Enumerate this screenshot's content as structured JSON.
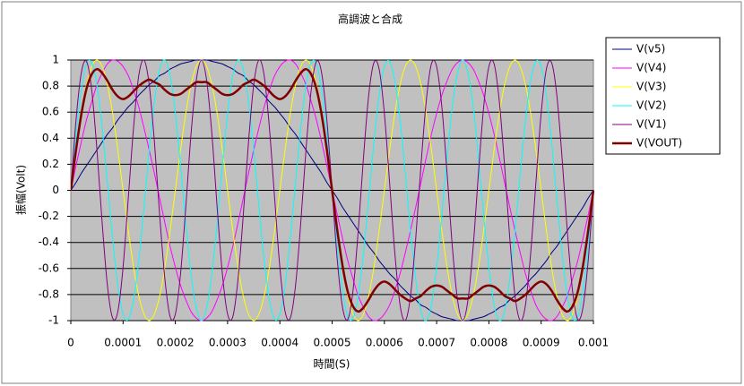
{
  "chart_data": {
    "type": "line",
    "title": "高調波と合成",
    "x_label": "時間(S)",
    "y_label": "振幅(Volt)",
    "x": [
      0,
      1e-05,
      2e-05,
      3e-05,
      4e-05,
      5e-05,
      6e-05,
      7e-05,
      8e-05,
      9e-05,
      0.0001,
      0.00011,
      0.00012,
      0.00013,
      0.00014,
      0.00015,
      0.00016,
      0.00017,
      0.00018,
      0.00019,
      0.0002,
      0.00021,
      0.00022,
      0.00023,
      0.00024,
      0.00025,
      0.00026,
      0.00027,
      0.00028,
      0.00029,
      0.0003,
      0.00031,
      0.00032,
      0.00033,
      0.00034,
      0.00035,
      0.00036,
      0.00037,
      0.00038,
      0.00039,
      0.0004,
      0.00041,
      0.00042,
      0.00043,
      0.00044,
      0.00045,
      0.00046,
      0.00047,
      0.00048,
      0.00049,
      0.0005,
      0.00051,
      0.00052,
      0.00053,
      0.00054,
      0.00055,
      0.00056,
      0.00057,
      0.00058,
      0.00059,
      0.0006,
      0.00061,
      0.00062,
      0.00063,
      0.00064,
      0.00065,
      0.00066,
      0.00067,
      0.00068,
      0.00069,
      0.0007,
      0.00071,
      0.00072,
      0.00073,
      0.00074,
      0.00075,
      0.00076,
      0.00077,
      0.00078,
      0.00079,
      0.0008,
      0.00081,
      0.00082,
      0.00083,
      0.00084,
      0.00085,
      0.00086,
      0.00087,
      0.00088,
      0.00089,
      0.0009,
      0.00091,
      0.00092,
      0.00093,
      0.00094,
      0.00095,
      0.00096,
      0.00097,
      0.00098,
      0.00099,
      0.001
    ],
    "series": [
      {
        "name": "V(v5)",
        "color": "#000080",
        "values": [
          0,
          0.06,
          0.13,
          0.19,
          0.25,
          0.31,
          0.37,
          0.43,
          0.48,
          0.54,
          0.59,
          0.64,
          0.68,
          0.73,
          0.77,
          0.81,
          0.84,
          0.88,
          0.9,
          0.93,
          0.95,
          0.97,
          0.98,
          0.99,
          1,
          1,
          1,
          0.99,
          0.98,
          0.97,
          0.95,
          0.93,
          0.9,
          0.88,
          0.84,
          0.81,
          0.77,
          0.73,
          0.68,
          0.64,
          0.59,
          0.54,
          0.48,
          0.43,
          0.37,
          0.31,
          0.25,
          0.19,
          0.13,
          0.06,
          0,
          -0.06,
          -0.13,
          -0.19,
          -0.25,
          -0.31,
          -0.37,
          -0.43,
          -0.48,
          -0.54,
          -0.59,
          -0.64,
          -0.68,
          -0.73,
          -0.77,
          -0.81,
          -0.84,
          -0.88,
          -0.9,
          -0.93,
          -0.95,
          -0.97,
          -0.98,
          -0.99,
          -1,
          -1,
          -1,
          -0.99,
          -0.98,
          -0.97,
          -0.95,
          -0.93,
          -0.9,
          -0.88,
          -0.84,
          -0.81,
          -0.77,
          -0.73,
          -0.68,
          -0.64,
          -0.59,
          -0.54,
          -0.48,
          -0.43,
          -0.37,
          -0.31,
          -0.25,
          -0.19,
          -0.13,
          -0.06,
          0
        ]
      },
      {
        "name": "V(V4)",
        "color": "#ff00ff",
        "values": [
          0,
          0.19,
          0.37,
          0.54,
          0.68,
          0.81,
          0.9,
          0.97,
          1,
          0.99,
          0.95,
          0.88,
          0.77,
          0.64,
          0.48,
          0.31,
          0.13,
          -0.06,
          -0.25,
          -0.43,
          -0.59,
          -0.73,
          -0.84,
          -0.93,
          -0.98,
          -1,
          -0.98,
          -0.93,
          -0.84,
          -0.73,
          -0.59,
          -0.43,
          -0.25,
          -0.06,
          0.13,
          0.31,
          0.48,
          0.64,
          0.77,
          0.88,
          0.95,
          0.99,
          1,
          0.97,
          0.9,
          0.81,
          0.68,
          0.54,
          0.37,
          0.19,
          0,
          -0.19,
          -0.37,
          -0.54,
          -0.68,
          -0.81,
          -0.9,
          -0.97,
          -1,
          -0.99,
          -0.95,
          -0.88,
          -0.77,
          -0.64,
          -0.48,
          -0.31,
          -0.13,
          0.06,
          0.25,
          0.43,
          0.59,
          0.73,
          0.84,
          0.93,
          0.98,
          1,
          0.98,
          0.93,
          0.84,
          0.73,
          0.59,
          0.43,
          0.25,
          0.06,
          -0.13,
          -0.31,
          -0.48,
          -0.64,
          -0.77,
          -0.88,
          -0.95,
          -0.99,
          -1,
          -0.97,
          -0.9,
          -0.81,
          -0.68,
          -0.54,
          -0.37,
          -0.19,
          0
        ]
      },
      {
        "name": "V(V3)",
        "color": "#ffff00",
        "values": [
          0,
          0.31,
          0.59,
          0.81,
          0.95,
          1,
          0.95,
          0.81,
          0.59,
          0.31,
          0,
          -0.31,
          -0.59,
          -0.81,
          -0.95,
          -1,
          -0.95,
          -0.81,
          -0.59,
          -0.31,
          0,
          0.31,
          0.59,
          0.81,
          0.95,
          1,
          0.95,
          0.81,
          0.59,
          0.31,
          0,
          -0.31,
          -0.59,
          -0.81,
          -0.95,
          -1,
          -0.95,
          -0.81,
          -0.59,
          -0.31,
          0,
          0.31,
          0.59,
          0.81,
          0.95,
          1,
          0.95,
          0.81,
          0.59,
          0.31,
          0,
          -0.31,
          -0.59,
          -0.81,
          -0.95,
          -1,
          -0.95,
          -0.81,
          -0.59,
          -0.31,
          0,
          0.31,
          0.59,
          0.81,
          0.95,
          1,
          0.95,
          0.81,
          0.59,
          0.31,
          0,
          -0.31,
          -0.59,
          -0.81,
          -0.95,
          -1,
          -0.95,
          -0.81,
          -0.59,
          -0.31,
          0,
          0.31,
          0.59,
          0.81,
          0.95,
          1,
          0.95,
          0.81,
          0.59,
          0.31,
          0,
          -0.31,
          -0.59,
          -0.81,
          -0.95,
          -1,
          -0.95,
          -0.81,
          -0.59,
          -0.31,
          0
        ]
      },
      {
        "name": "V(V2)",
        "color": "#00ffff",
        "values": [
          0,
          0.43,
          0.77,
          0.97,
          0.98,
          0.81,
          0.48,
          0.06,
          -0.37,
          -0.73,
          -0.95,
          -0.99,
          -0.84,
          -0.54,
          -0.13,
          0.31,
          0.68,
          0.93,
          1,
          0.88,
          0.59,
          0.19,
          -0.25,
          -0.64,
          -0.9,
          -1,
          -0.9,
          -0.64,
          -0.25,
          0.19,
          0.59,
          0.88,
          1,
          0.93,
          0.68,
          0.31,
          -0.13,
          -0.54,
          -0.84,
          -0.99,
          -0.95,
          -0.73,
          -0.37,
          0.06,
          0.48,
          0.81,
          0.98,
          0.97,
          0.77,
          0.43,
          0,
          -0.43,
          -0.77,
          -0.97,
          -0.98,
          -0.81,
          -0.48,
          -0.06,
          0.37,
          0.73,
          0.95,
          0.99,
          0.84,
          0.54,
          0.13,
          -0.31,
          -0.68,
          -0.93,
          -1,
          -0.88,
          -0.59,
          -0.19,
          0.25,
          0.64,
          0.9,
          1,
          0.9,
          0.64,
          0.25,
          -0.19,
          -0.59,
          -0.88,
          -1,
          -0.93,
          -0.68,
          -0.31,
          0.13,
          0.54,
          0.84,
          0.99,
          0.95,
          0.73,
          0.37,
          -0.06,
          -0.48,
          -0.81,
          -0.98,
          -0.97,
          -0.77,
          -0.43,
          0
        ]
      },
      {
        "name": "V(V1)",
        "color": "#800080",
        "values": [
          0,
          0.54,
          0.9,
          0.99,
          0.77,
          0.31,
          -0.25,
          -0.73,
          -0.98,
          -0.93,
          -0.59,
          -0.06,
          0.48,
          0.88,
          1,
          0.81,
          0.37,
          -0.19,
          -0.68,
          -0.97,
          -0.95,
          -0.64,
          -0.13,
          0.43,
          0.84,
          1,
          0.84,
          0.43,
          -0.13,
          -0.64,
          -0.95,
          -0.97,
          -0.68,
          -0.19,
          0.37,
          0.81,
          1,
          0.88,
          0.48,
          -0.06,
          -0.59,
          -0.93,
          -0.98,
          -0.73,
          -0.25,
          0.31,
          0.77,
          0.99,
          0.9,
          0.54,
          0,
          -0.54,
          -0.9,
          -0.99,
          -0.77,
          -0.31,
          0.25,
          0.73,
          0.98,
          0.93,
          0.59,
          0.06,
          -0.48,
          -0.88,
          -1,
          -0.81,
          -0.37,
          0.19,
          0.68,
          0.97,
          0.95,
          0.64,
          0.13,
          -0.43,
          -0.84,
          -1,
          -0.84,
          -0.43,
          0.13,
          0.64,
          0.95,
          0.97,
          0.68,
          0.19,
          -0.37,
          -0.81,
          -1,
          -0.88,
          -0.48,
          0.06,
          0.59,
          0.93,
          0.98,
          0.73,
          0.25,
          -0.31,
          -0.77,
          -0.99,
          -0.9,
          -0.54,
          0
        ]
      },
      {
        "name": "V(VOUT)",
        "color": "#800000",
        "values": [
          0,
          0.31,
          0.58,
          0.78,
          0.89,
          0.93,
          0.9,
          0.84,
          0.77,
          0.72,
          0.7,
          0.72,
          0.76,
          0.8,
          0.83,
          0.85,
          0.83,
          0.81,
          0.77,
          0.74,
          0.73,
          0.74,
          0.77,
          0.8,
          0.83,
          0.83,
          0.83,
          0.8,
          0.77,
          0.74,
          0.73,
          0.74,
          0.77,
          0.81,
          0.83,
          0.85,
          0.83,
          0.8,
          0.76,
          0.72,
          0.7,
          0.72,
          0.77,
          0.84,
          0.9,
          0.93,
          0.89,
          0.78,
          0.58,
          0.31,
          0,
          -0.31,
          -0.58,
          -0.78,
          -0.89,
          -0.93,
          -0.9,
          -0.84,
          -0.77,
          -0.72,
          -0.7,
          -0.72,
          -0.76,
          -0.8,
          -0.83,
          -0.85,
          -0.83,
          -0.81,
          -0.77,
          -0.74,
          -0.73,
          -0.74,
          -0.77,
          -0.8,
          -0.83,
          -0.83,
          -0.83,
          -0.8,
          -0.77,
          -0.74,
          -0.73,
          -0.74,
          -0.77,
          -0.81,
          -0.83,
          -0.85,
          -0.83,
          -0.8,
          -0.76,
          -0.72,
          -0.7,
          -0.72,
          -0.77,
          -0.84,
          -0.9,
          -0.93,
          -0.89,
          -0.78,
          -0.58,
          -0.31,
          0
        ]
      }
    ],
    "xlim": [
      0,
      0.001
    ],
    "xticks": [
      0,
      0.0001,
      0.0002,
      0.0003,
      0.0004,
      0.0005,
      0.0006,
      0.0007,
      0.0008,
      0.0009,
      0.001
    ],
    "ylim": [
      -1,
      1
    ],
    "yticks": [
      -1,
      -0.8,
      -0.6,
      -0.4,
      -0.2,
      0,
      0.2,
      0.4,
      0.6,
      0.8,
      1
    ],
    "grid": true,
    "plot_background": "#c0c0c0"
  }
}
